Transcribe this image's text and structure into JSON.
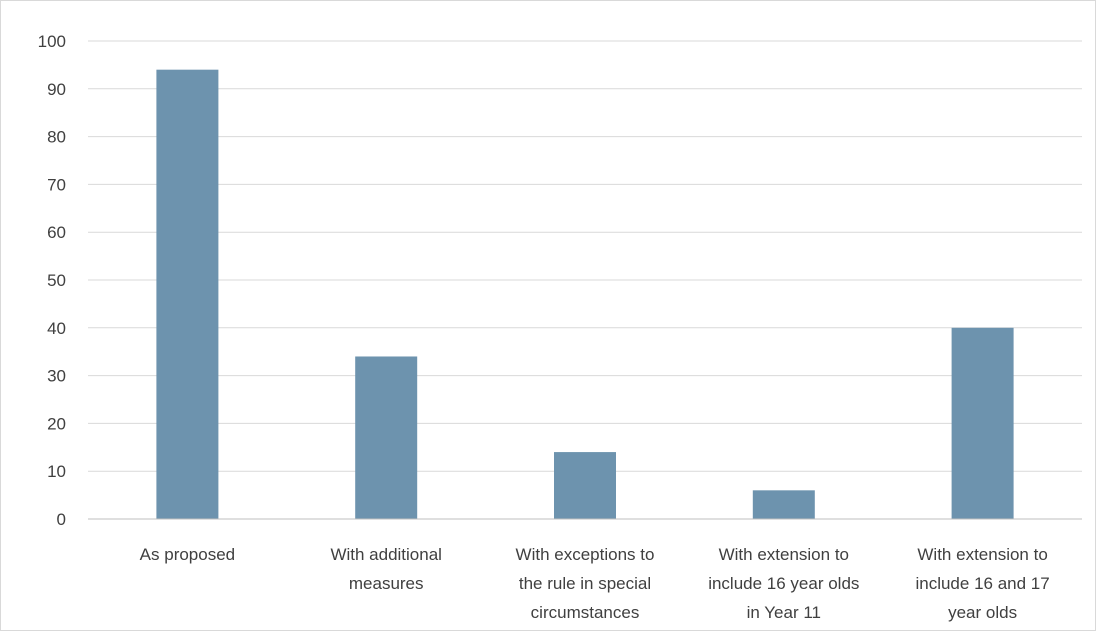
{
  "chart_data": {
    "type": "bar",
    "categories": [
      [
        "As proposed"
      ],
      [
        "With additional",
        "measures"
      ],
      [
        "With exceptions to",
        "the rule in special",
        "circumstances"
      ],
      [
        "With extension to",
        "include 16 year olds",
        "in  Year 11"
      ],
      [
        "With extension to",
        "include 16 and 17",
        "year olds"
      ]
    ],
    "values": [
      94,
      34,
      14,
      6,
      40
    ],
    "title": "",
    "xlabel": "",
    "ylabel": "",
    "ylim": [
      0,
      100
    ],
    "yticks": [
      0,
      10,
      20,
      30,
      40,
      50,
      60,
      70,
      80,
      90,
      100
    ],
    "grid": true,
    "legend": "none",
    "bar_color": "#6d93ae",
    "grid_color": "#d9d9d9",
    "axis_color": "#bfbfbf",
    "text_color": "#404040"
  }
}
